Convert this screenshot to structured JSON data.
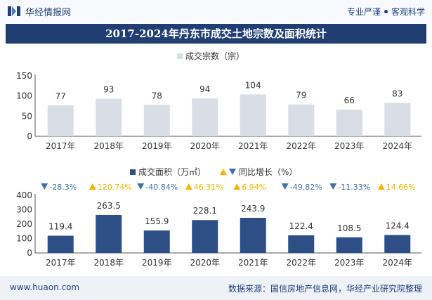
{
  "header": {
    "brand": "华经情报网",
    "slogan_left": "专业严谨",
    "slogan_right": "客观科学"
  },
  "title": "2017-2024年丹东市成交土地宗数及面积统计",
  "chart_data": [
    {
      "type": "bar",
      "categories": [
        "2017年",
        "2018年",
        "2019年",
        "2020年",
        "2021年",
        "2022年",
        "2023年",
        "2024年"
      ],
      "series": [
        {
          "name": "成交宗数（宗）",
          "values": [
            77,
            93,
            78,
            94,
            104,
            79,
            66,
            83
          ],
          "color": "#d9dde5"
        }
      ],
      "ylim": [
        0,
        150
      ],
      "yticks": [
        "0",
        "50",
        "100",
        "150"
      ],
      "legend": "top-center"
    },
    {
      "type": "bar",
      "categories": [
        "2017年",
        "2018年",
        "2019年",
        "2020年",
        "2021年",
        "2022年",
        "2023年",
        "2024年"
      ],
      "series": [
        {
          "name": "成交面积（万㎡）",
          "values": [
            119.4,
            263.5,
            155.9,
            228.1,
            243.9,
            122.4,
            108.5,
            124.4
          ],
          "color": "#2e4e86"
        },
        {
          "name": "同比增长（%）",
          "values": [
            "-28.3%",
            "120.74%",
            "-40.84%",
            "46.31%",
            "6.94%",
            "-49.82%",
            "-11.33%",
            "14.66%"
          ]
        }
      ],
      "ylim": [
        0,
        400
      ],
      "yticks": [
        "0",
        "100",
        "200",
        "300",
        "400"
      ],
      "legend": "top-center",
      "colors": {
        "up": "#f5b400",
        "down": "#3f6fb0"
      }
    }
  ],
  "footer": {
    "site": "www.huaon.com",
    "source": "数据来源：国信房地产信息网，华经产业研究院整理"
  },
  "watermark": "华经产业研究院"
}
